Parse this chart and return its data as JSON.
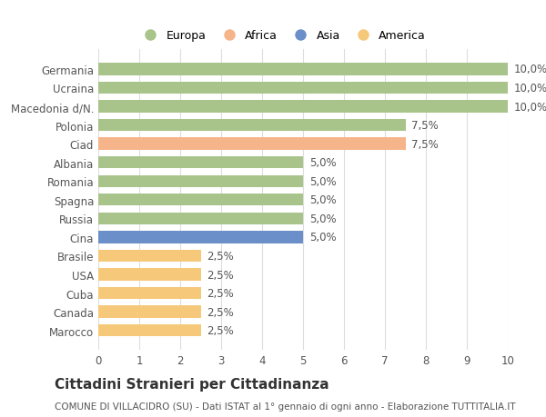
{
  "categories": [
    "Marocco",
    "Canada",
    "Cuba",
    "USA",
    "Brasile",
    "Cina",
    "Russia",
    "Spagna",
    "Romania",
    "Albania",
    "Ciad",
    "Polonia",
    "Macedonia d/N.",
    "Ucraina",
    "Germania"
  ],
  "values": [
    2.5,
    2.5,
    2.5,
    2.5,
    2.5,
    5.0,
    5.0,
    5.0,
    5.0,
    5.0,
    7.5,
    7.5,
    10.0,
    10.0,
    10.0
  ],
  "colors": [
    "#f5c87a",
    "#f5c87a",
    "#f5c87a",
    "#f5c87a",
    "#f5c87a",
    "#6b8fc9",
    "#a8c48a",
    "#a8c48a",
    "#a8c48a",
    "#a8c48a",
    "#f5b48a",
    "#a8c48a",
    "#a8c48a",
    "#a8c48a",
    "#a8c48a"
  ],
  "labels": [
    "2,5%",
    "2,5%",
    "2,5%",
    "2,5%",
    "2,5%",
    "5,0%",
    "5,0%",
    "5,0%",
    "5,0%",
    "5,0%",
    "7,5%",
    "7,5%",
    "10,0%",
    "10,0%",
    "10,0%"
  ],
  "legend": [
    {
      "label": "Europa",
      "color": "#a8c48a"
    },
    {
      "label": "Africa",
      "color": "#f5b48a"
    },
    {
      "label": "Asia",
      "color": "#6b8fc9"
    },
    {
      "label": "America",
      "color": "#f5c87a"
    }
  ],
  "xlim": [
    0,
    10
  ],
  "xticks": [
    0,
    1,
    2,
    3,
    4,
    5,
    6,
    7,
    8,
    9,
    10
  ],
  "title": "Cittadini Stranieri per Cittadinanza",
  "subtitle": "COMUNE DI VILLACIDRO (SU) - Dati ISTAT al 1° gennaio di ogni anno - Elaborazione TUTTITALIA.IT",
  "background_color": "#ffffff",
  "bar_height": 0.65,
  "grid_color": "#dddddd",
  "label_fontsize": 8.5,
  "ytick_fontsize": 8.5,
  "xtick_fontsize": 8.5,
  "title_fontsize": 11,
  "subtitle_fontsize": 7.5
}
